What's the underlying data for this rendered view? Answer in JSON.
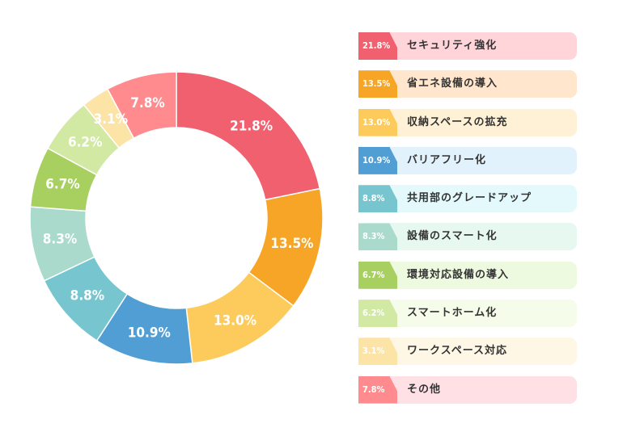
{
  "chart_data": {
    "type": "pie",
    "donut": true,
    "title": "",
    "legend_position": "right",
    "slices": [
      {
        "label": "21.8%",
        "value": 21.8,
        "name": "セキュリティ強化",
        "color": "#F0606E",
        "bg": "#FFD5DA"
      },
      {
        "label": "13.5%",
        "value": 13.5,
        "name": "省エネ設備の導入",
        "color": "#F7A527",
        "bg": "#FFE6CC"
      },
      {
        "label": "13.0%",
        "value": 13.0,
        "name": "収納スペースの拡充",
        "color": "#FDCB5B",
        "bg": "#FFF1D6"
      },
      {
        "label": "10.9%",
        "value": 10.9,
        "name": "バリアフリー化",
        "color": "#519ED4",
        "bg": "#E1F2FC"
      },
      {
        "label": "8.8%",
        "value": 8.8,
        "name": "共用部のグレードアップ",
        "color": "#77C5CE",
        "bg": "#E3F9FC"
      },
      {
        "label": "8.3%",
        "value": 8.3,
        "name": "設備のスマート化",
        "color": "#A9DACB",
        "bg": "#E7F8F1"
      },
      {
        "label": "6.7%",
        "value": 6.7,
        "name": "環境対応設備の導入",
        "color": "#A8D060",
        "bg": "#EEFAE0"
      },
      {
        "label": "6.2%",
        "value": 6.2,
        "name": "スマートホーム化",
        "color": "#D2E9A4",
        "bg": "#F5FCEA"
      },
      {
        "label": "3.1%",
        "value": 3.1,
        "name": "ワークスペース対応",
        "color": "#FCE3A6",
        "bg": "#FFF7E6"
      },
      {
        "label": "7.8%",
        "value": 7.8,
        "name": "その他",
        "color": "#FF8B8E",
        "bg": "#FFE0E4"
      }
    ]
  }
}
